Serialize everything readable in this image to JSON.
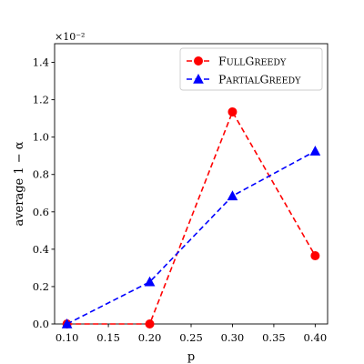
{
  "chart_data": {
    "type": "line",
    "xlabel": "p",
    "ylabel": "average 1 − α",
    "y_exponent_label": "×10⁻²",
    "xlim": [
      0.085,
      0.415
    ],
    "ylim": [
      0.0,
      1.5
    ],
    "x_ticks": [
      0.1,
      0.15,
      0.2,
      0.25,
      0.3,
      0.35,
      0.4
    ],
    "x_tick_labels": [
      "0.10",
      "0.15",
      "0.20",
      "0.25",
      "0.30",
      "0.35",
      "0.40"
    ],
    "y_ticks": [
      0.0,
      0.2,
      0.4,
      0.6,
      0.8,
      1.0,
      1.2,
      1.4
    ],
    "y_tick_labels": [
      "0.0",
      "0.2",
      "0.4",
      "0.6",
      "0.8",
      "1.0",
      "1.2",
      "1.4"
    ],
    "grid": false,
    "legend_position": "top-right",
    "x": [
      0.1,
      0.2,
      0.3,
      0.4
    ],
    "series": [
      {
        "name": "FullGreedy",
        "name_parts": [
          {
            "text": "F",
            "small": false
          },
          {
            "text": "ULL",
            "small": true
          },
          {
            "text": "G",
            "small": false
          },
          {
            "text": "REEDY",
            "small": true
          }
        ],
        "color": "#ff0000",
        "marker": "circle",
        "line_style": "dashed",
        "values": [
          0.0,
          0.0,
          1.135,
          0.365
        ]
      },
      {
        "name": "PartialGreedy",
        "name_parts": [
          {
            "text": "P",
            "small": false
          },
          {
            "text": "ARTIAL",
            "small": true
          },
          {
            "text": "G",
            "small": false
          },
          {
            "text": "REEDY",
            "small": true
          }
        ],
        "color": "#0000ff",
        "marker": "triangle",
        "line_style": "dashed",
        "values": [
          0.0,
          0.225,
          0.685,
          0.925
        ]
      }
    ]
  }
}
